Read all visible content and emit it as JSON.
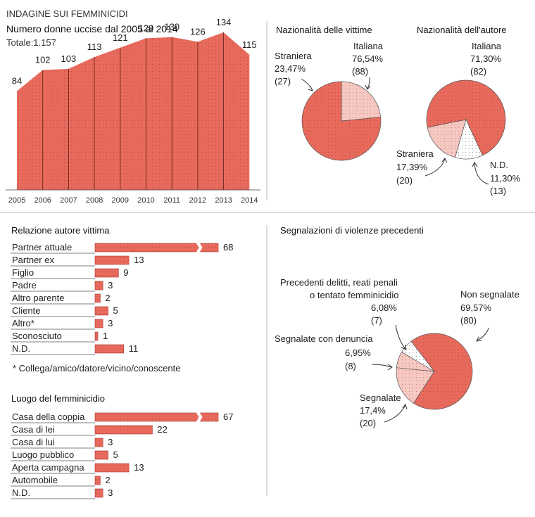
{
  "header": {
    "kicker": "INDAGINE SUI FEMMINICIDI",
    "title": "Numero donne uccise dal 2005 al 2014",
    "total": "Totale:1.157"
  },
  "colors": {
    "main": "#e86a5c",
    "light": "#f7c8c2",
    "white": "#ffffff",
    "dots": "#7a2a22",
    "text": "#222222",
    "rule": "#999999"
  },
  "chart_data": [
    {
      "type": "area",
      "title": "Numero donne uccise dal 2005 al 2014",
      "subtitle": "Totale:1.157",
      "categories": [
        "2005",
        "2006",
        "2007",
        "2008",
        "2009",
        "2010",
        "2011",
        "2012",
        "2013",
        "2014"
      ],
      "values": [
        84,
        102,
        103,
        113,
        121,
        129,
        130,
        126,
        134,
        115
      ],
      "ylim": [
        0,
        140
      ],
      "grid": false
    },
    {
      "type": "pie",
      "title": "Nazionalità delle vittime",
      "slices": [
        {
          "label": "Italiana",
          "percent": "76,54%",
          "count": "(88)",
          "value": 76.54,
          "color": "#e86a5c"
        },
        {
          "label": "Straniera",
          "percent": "23,47%",
          "count": "(27)",
          "value": 23.47,
          "color": "#f7c8c2"
        }
      ]
    },
    {
      "type": "pie",
      "title": "Nazionalità dell'autore",
      "slices": [
        {
          "label": "Italiana",
          "percent": "71,30%",
          "count": "(82)",
          "value": 71.3,
          "color": "#e86a5c"
        },
        {
          "label": "N.D.",
          "percent": "11,30%",
          "count": "(13)",
          "value": 11.3,
          "color": "#ffffff"
        },
        {
          "label": "Straniera",
          "percent": "17,39%",
          "count": "(20)",
          "value": 17.39,
          "color": "#f7c8c2"
        }
      ]
    },
    {
      "type": "bar",
      "title": "Relazione autore vittima",
      "categories": [
        "Partner attuale",
        "Partner ex",
        "Figlio",
        "Padre",
        "Altro parente",
        "Cliente",
        "Altro*",
        "Sconosciuto",
        "N.D."
      ],
      "values": [
        68,
        13,
        9,
        3,
        2,
        5,
        3,
        1,
        11
      ],
      "broken": [
        true,
        false,
        false,
        false,
        false,
        false,
        false,
        false,
        false
      ],
      "footnote": "* Collega/amico/datore/vicino/conoscente"
    },
    {
      "type": "bar",
      "title": "Luogo del femminicidio",
      "categories": [
        "Casa della coppia",
        "Casa di lei",
        "Casa di lui",
        "Luogo pubblico",
        "Aperta campagna",
        "Automobile",
        "N.D."
      ],
      "values": [
        67,
        22,
        3,
        5,
        13,
        2,
        3
      ],
      "broken": [
        true,
        false,
        false,
        false,
        false,
        false,
        false
      ]
    },
    {
      "type": "pie",
      "title": "Segnalazioni di violenze precedenti",
      "slices": [
        {
          "label": "Non segnalate",
          "percent": "69,57%",
          "count": "(80)",
          "value": 69.57,
          "color": "#e86a5c"
        },
        {
          "label": "Segnalate",
          "percent": "17,4%",
          "count": "(20)",
          "value": 17.4,
          "color": "#f7c8c2"
        },
        {
          "label": "Segnalate con denuncia",
          "percent": "6,95%",
          "count": "(8)",
          "value": 6.95,
          "color": "#f7c8c2"
        },
        {
          "label": "Precedenti delitti, reati penali o tentato femminicidio",
          "label_lines": [
            "Precedenti delitti, reati penali",
            "o tentato femminicidio"
          ],
          "percent": "6,08%",
          "count": "(7)",
          "value": 6.08,
          "color": "#ffffff"
        }
      ]
    }
  ]
}
